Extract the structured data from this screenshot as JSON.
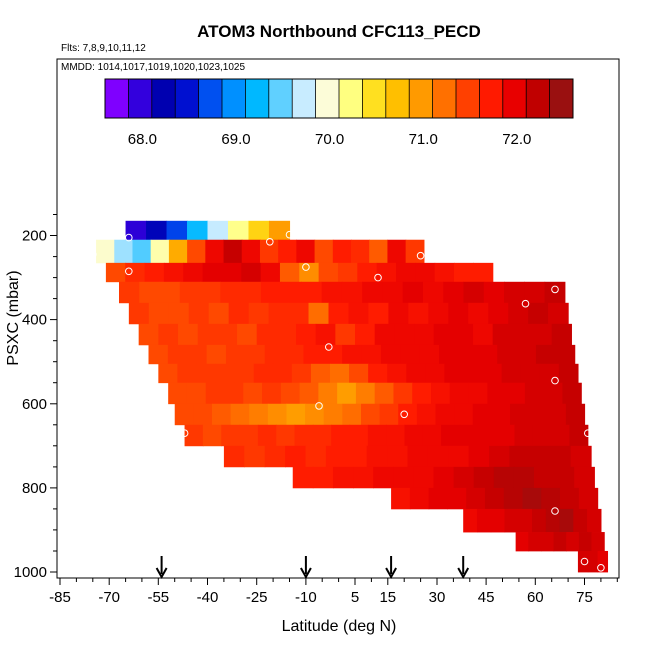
{
  "chart_data": {
    "type": "heatmap",
    "title": "ATOM3 Northbound CFC113_PECD",
    "flights_label": "Flts: 7,8,9,10,11,12",
    "mmdd_label": "MMDD: 1014,1017,1019,1020,1023,1025",
    "xlabel": "Latitude (deg N)",
    "ylabel": "PSXC (mbar)",
    "xlim": [
      -85,
      85
    ],
    "ylim": [
      1000,
      100
    ],
    "x_ticks": [
      -85,
      -70,
      -55,
      -40,
      -25,
      -10,
      5,
      15,
      30,
      45,
      60,
      75
    ],
    "x_ticks_labels": [
      "-85",
      "-70",
      "-55",
      "-40",
      "-25",
      "-10",
      "5",
      "15",
      "30",
      "45",
      "60",
      "75"
    ],
    "y_ticks": [
      200,
      400,
      600,
      800,
      1000
    ],
    "y_ticks_labels": [
      "200",
      "400",
      "600",
      "800",
      "1000"
    ],
    "colorbar": {
      "range": [
        67.6,
        72.6
      ],
      "tick_values": [
        68.0,
        69.0,
        70.0,
        71.0,
        72.0
      ],
      "tick_labels": [
        "68.0",
        "69.0",
        "70.0",
        "71.0",
        "72.0"
      ],
      "colors": [
        "#7f00ff",
        "#3300dd",
        "#0000b0",
        "#0010d0",
        "#0050f0",
        "#0090ff",
        "#00b8ff",
        "#60d0ff",
        "#c8ecff",
        "#fcfcd8",
        "#ffff80",
        "#ffe020",
        "#ffbf00",
        "#ff9a00",
        "#ff7000",
        "#ff4000",
        "#ff1a00",
        "#e80000",
        "#c00000",
        "#9a1010"
      ]
    },
    "flight_markers_lat": [
      -54,
      -10,
      16,
      38
    ],
    "rows": [
      {
        "p_top": 165,
        "p_bot": 210,
        "lat_from": -65,
        "lat_to": -15,
        "values": [
          67.9,
          68.2,
          68.6,
          69.2,
          69.7,
          70.2,
          70.6,
          71.0
        ]
      },
      {
        "p_top": 210,
        "p_bot": 265,
        "lat_from": -74,
        "lat_to": 26,
        "values": [
          70.0,
          69.6,
          69.4,
          70.1,
          70.9,
          71.5,
          72.0,
          72.3,
          72.0,
          71.6,
          71.8,
          72.0,
          71.5,
          71.8,
          71.7,
          71.4,
          72.0,
          71.6
        ]
      },
      {
        "p_top": 265,
        "p_bot": 310,
        "lat_from": -71,
        "lat_to": 47,
        "values": [
          71.5,
          71.7,
          71.8,
          71.9,
          72.0,
          72.1,
          72.1,
          72.2,
          72.0,
          71.4,
          71.1,
          71.5,
          71.6,
          71.8,
          71.9,
          72.0,
          72.0,
          71.9,
          71.8,
          71.8
        ]
      },
      {
        "p_top": 310,
        "p_bot": 360,
        "lat_from": -67,
        "lat_to": 69,
        "values": [
          71.6,
          71.5,
          71.5,
          71.6,
          71.6,
          71.7,
          71.7,
          71.8,
          71.8,
          71.8,
          71.9,
          71.9,
          72.0,
          72.0,
          72.1,
          72.0,
          72.1,
          72.2,
          72.1,
          72.2,
          72.2,
          72.3
        ]
      },
      {
        "p_top": 360,
        "p_bot": 410,
        "lat_from": -64,
        "lat_to": 70,
        "values": [
          71.6,
          71.5,
          71.5,
          71.6,
          71.5,
          71.7,
          71.6,
          71.7,
          71.7,
          71.3,
          71.8,
          71.9,
          71.8,
          72.0,
          71.9,
          72.0,
          72.1,
          72.0,
          72.1,
          72.2,
          72.3,
          72.2
        ]
      },
      {
        "p_top": 410,
        "p_bot": 460,
        "lat_from": -61,
        "lat_to": 71,
        "values": [
          71.5,
          71.6,
          71.5,
          71.6,
          71.6,
          71.5,
          71.7,
          71.7,
          71.8,
          71.9,
          71.6,
          71.8,
          72.0,
          72.0,
          72.0,
          72.1,
          72.1,
          72.0,
          72.2,
          72.2,
          72.2,
          72.3
        ]
      },
      {
        "p_top": 460,
        "p_bot": 505,
        "lat_from": -58,
        "lat_to": 72,
        "values": [
          71.5,
          71.6,
          71.6,
          71.5,
          71.6,
          71.6,
          71.7,
          71.7,
          71.8,
          71.8,
          71.9,
          71.9,
          72.0,
          72.0,
          72.0,
          72.1,
          72.1,
          72.1,
          72.2,
          72.2,
          72.3,
          72.3
        ]
      },
      {
        "p_top": 505,
        "p_bot": 550,
        "lat_from": -55,
        "lat_to": 73,
        "values": [
          71.5,
          71.6,
          71.6,
          71.6,
          71.6,
          71.7,
          71.7,
          71.6,
          71.4,
          71.3,
          71.5,
          71.8,
          71.9,
          72.0,
          72.0,
          72.1,
          72.1,
          72.1,
          72.2,
          72.2,
          72.2,
          72.3
        ]
      },
      {
        "p_top": 550,
        "p_bot": 600,
        "lat_from": -52,
        "lat_to": 74,
        "values": [
          71.5,
          71.5,
          71.6,
          71.6,
          71.5,
          71.6,
          71.5,
          71.4,
          71.2,
          71.0,
          71.2,
          71.4,
          71.6,
          71.8,
          71.9,
          72.0,
          72.0,
          72.1,
          72.1,
          72.2,
          72.2,
          72.3
        ]
      },
      {
        "p_top": 600,
        "p_bot": 650,
        "lat_from": -50,
        "lat_to": 75,
        "values": [
          71.5,
          71.5,
          71.4,
          71.3,
          71.2,
          71.1,
          71.0,
          71.1,
          71.2,
          71.3,
          71.5,
          71.6,
          71.8,
          71.9,
          72.0,
          72.0,
          72.1,
          72.1,
          72.2,
          72.2,
          72.2,
          72.3
        ]
      },
      {
        "p_top": 650,
        "p_bot": 700,
        "lat_from": -47,
        "lat_to": 76,
        "values": [
          71.6,
          71.5,
          71.6,
          71.6,
          71.7,
          71.6,
          71.7,
          71.7,
          71.8,
          71.8,
          71.9,
          71.9,
          72.0,
          72.0,
          72.1,
          72.1,
          72.1,
          72.1,
          72.2,
          72.2,
          72.2,
          72.3
        ]
      },
      {
        "p_top": 700,
        "p_bot": 750,
        "lat_from": -35,
        "lat_to": 77,
        "values": [
          71.7,
          71.6,
          71.7,
          71.8,
          71.7,
          71.8,
          71.8,
          71.9,
          71.9,
          72.0,
          72.0,
          72.0,
          72.1,
          72.2,
          72.3,
          72.3,
          72.3,
          72.2
        ]
      },
      {
        "p_top": 750,
        "p_bot": 800,
        "lat_from": -14,
        "lat_to": 78,
        "values": [
          71.8,
          71.8,
          71.9,
          71.9,
          72.0,
          72.0,
          72.0,
          72.1,
          72.2,
          72.3,
          72.4,
          72.4,
          72.3,
          72.3,
          72.2
        ]
      },
      {
        "p_top": 800,
        "p_bot": 850,
        "lat_from": 16,
        "lat_to": 79,
        "values": [
          71.9,
          72.0,
          72.1,
          72.1,
          72.2,
          72.3,
          72.4,
          72.5,
          72.4,
          72.3,
          72.2
        ]
      },
      {
        "p_top": 850,
        "p_bot": 905,
        "lat_from": 38,
        "lat_to": 80,
        "values": [
          72.0,
          72.1,
          72.1,
          72.2,
          72.2,
          72.3,
          72.4,
          72.5,
          72.3,
          72.2
        ]
      },
      {
        "p_top": 905,
        "p_bot": 950,
        "lat_from": 54,
        "lat_to": 81,
        "values": [
          72.1,
          72.2,
          72.2,
          72.3,
          72.2,
          72.3,
          72.2
        ]
      },
      {
        "p_top": 950,
        "p_bot": 1000,
        "lat_from": 73,
        "lat_to": 82,
        "values": [
          72.2,
          72.2,
          72.1
        ]
      }
    ],
    "sample_points": [
      {
        "lat": -64,
        "p": 205
      },
      {
        "lat": -21,
        "p": 215
      },
      {
        "lat": -15,
        "p": 198
      },
      {
        "lat": -75,
        "p": 245
      },
      {
        "lat": 25,
        "p": 248
      },
      {
        "lat": -64,
        "p": 285
      },
      {
        "lat": -10,
        "p": 275
      },
      {
        "lat": 12,
        "p": 300
      },
      {
        "lat": 66,
        "p": 328
      },
      {
        "lat": 57,
        "p": 362
      },
      {
        "lat": -3,
        "p": 465
      },
      {
        "lat": 66,
        "p": 545
      },
      {
        "lat": -6,
        "p": 605
      },
      {
        "lat": 20,
        "p": 625
      },
      {
        "lat": -47,
        "p": 670
      },
      {
        "lat": 76,
        "p": 670
      },
      {
        "lat": 66,
        "p": 855
      },
      {
        "lat": 75,
        "p": 975
      },
      {
        "lat": 80,
        "p": 990
      }
    ]
  }
}
